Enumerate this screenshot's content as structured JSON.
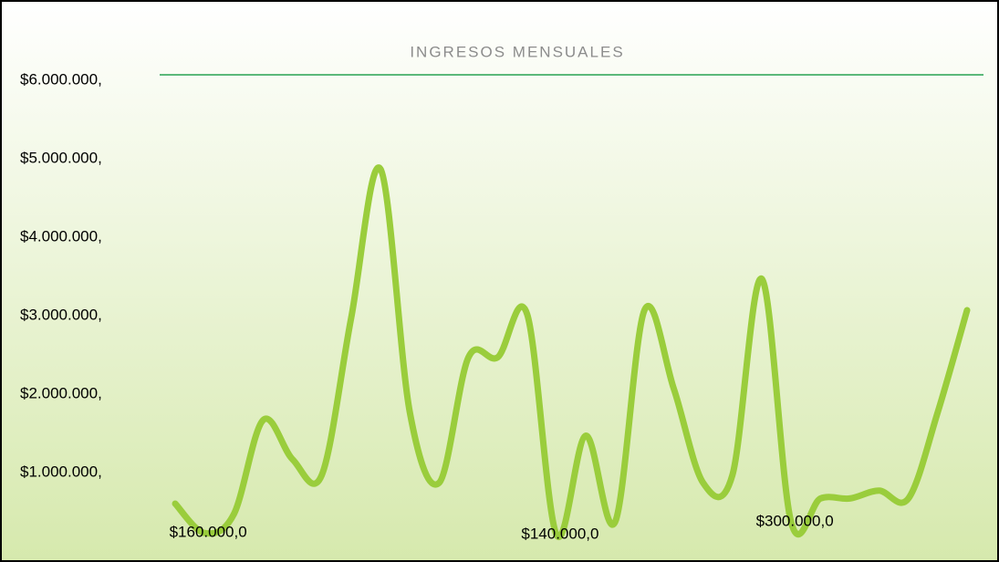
{
  "chart_data": {
    "type": "line",
    "title": "INGRESOS MENSUALES",
    "categories": [
      null,
      null,
      null,
      null,
      null,
      null,
      null,
      null,
      null,
      null,
      null,
      null,
      null,
      null,
      null,
      null,
      null,
      null,
      null,
      null,
      null,
      null,
      null,
      null,
      null,
      null,
      null,
      null
    ],
    "series": [
      {
        "name": "Ingresos",
        "color": "#9acd3c",
        "values": [
          535000,
          160000,
          400000,
          1600000,
          1100000,
          900000,
          2900000,
          4800000,
          1700000,
          800000,
          2400000,
          2400000,
          2950000,
          140000,
          1400000,
          300000,
          3000000,
          2000000,
          800000,
          900000,
          3400000,
          300000,
          600000,
          600000,
          700000,
          600000,
          1700000,
          3000000
        ],
        "value_labels": [
          null,
          "$160.000,0",
          null,
          null,
          null,
          null,
          null,
          null,
          null,
          null,
          null,
          null,
          null,
          "$140.000,0",
          null,
          null,
          null,
          null,
          null,
          null,
          null,
          "$300.000,0",
          null,
          null,
          null,
          null,
          null,
          null
        ]
      }
    ],
    "ylim": [
      0,
      6000000
    ],
    "yticks": [
      {
        "value": 1000000,
        "label": "$1.000.000,"
      },
      {
        "value": 2000000,
        "label": "$2.000.000,"
      },
      {
        "value": 3000000,
        "label": "$3.000.000,"
      },
      {
        "value": 4000000,
        "label": "$4.000.000,"
      },
      {
        "value": 5000000,
        "label": "$5.000.000,"
      },
      {
        "value": 6000000,
        "label": "$6.000.000,"
      }
    ],
    "grid": false,
    "legend": false
  }
}
